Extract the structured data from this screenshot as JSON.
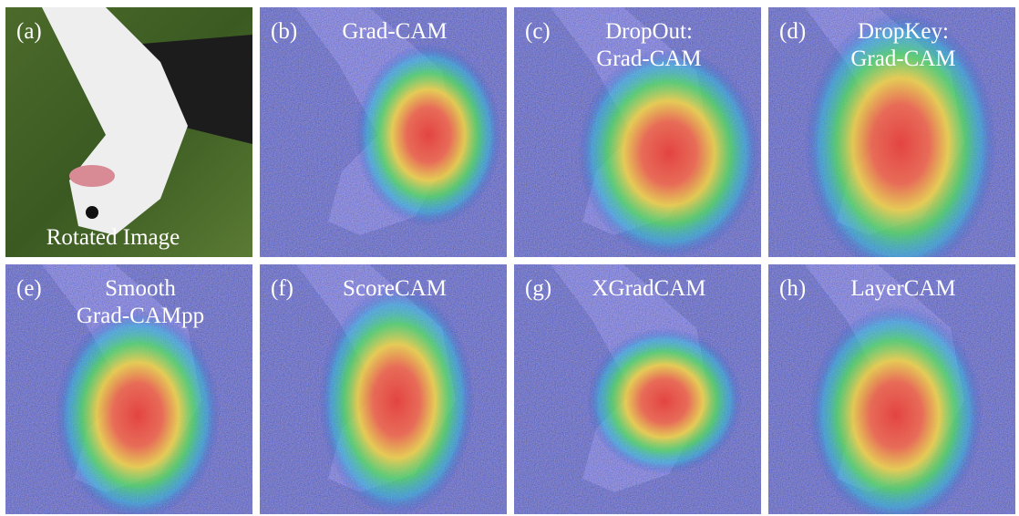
{
  "panels": [
    {
      "tag": "(a)",
      "title": [
        "Rotated Image"
      ]
    },
    {
      "tag": "(b)",
      "title": [
        "Grad-CAM"
      ]
    },
    {
      "tag": "(c)",
      "title": [
        "DropOut:",
        "Grad-CAM"
      ]
    },
    {
      "tag": "(d)",
      "title": [
        "DropKey:",
        "Grad-CAM"
      ]
    },
    {
      "tag": "(e)",
      "title": [
        "Smooth",
        "Grad-CAMpp"
      ]
    },
    {
      "tag": "(f)",
      "title": [
        "ScoreCAM"
      ]
    },
    {
      "tag": "(g)",
      "title": [
        "XGradCAM"
      ]
    },
    {
      "tag": "(h)",
      "title": [
        "LayerCAM"
      ]
    }
  ]
}
